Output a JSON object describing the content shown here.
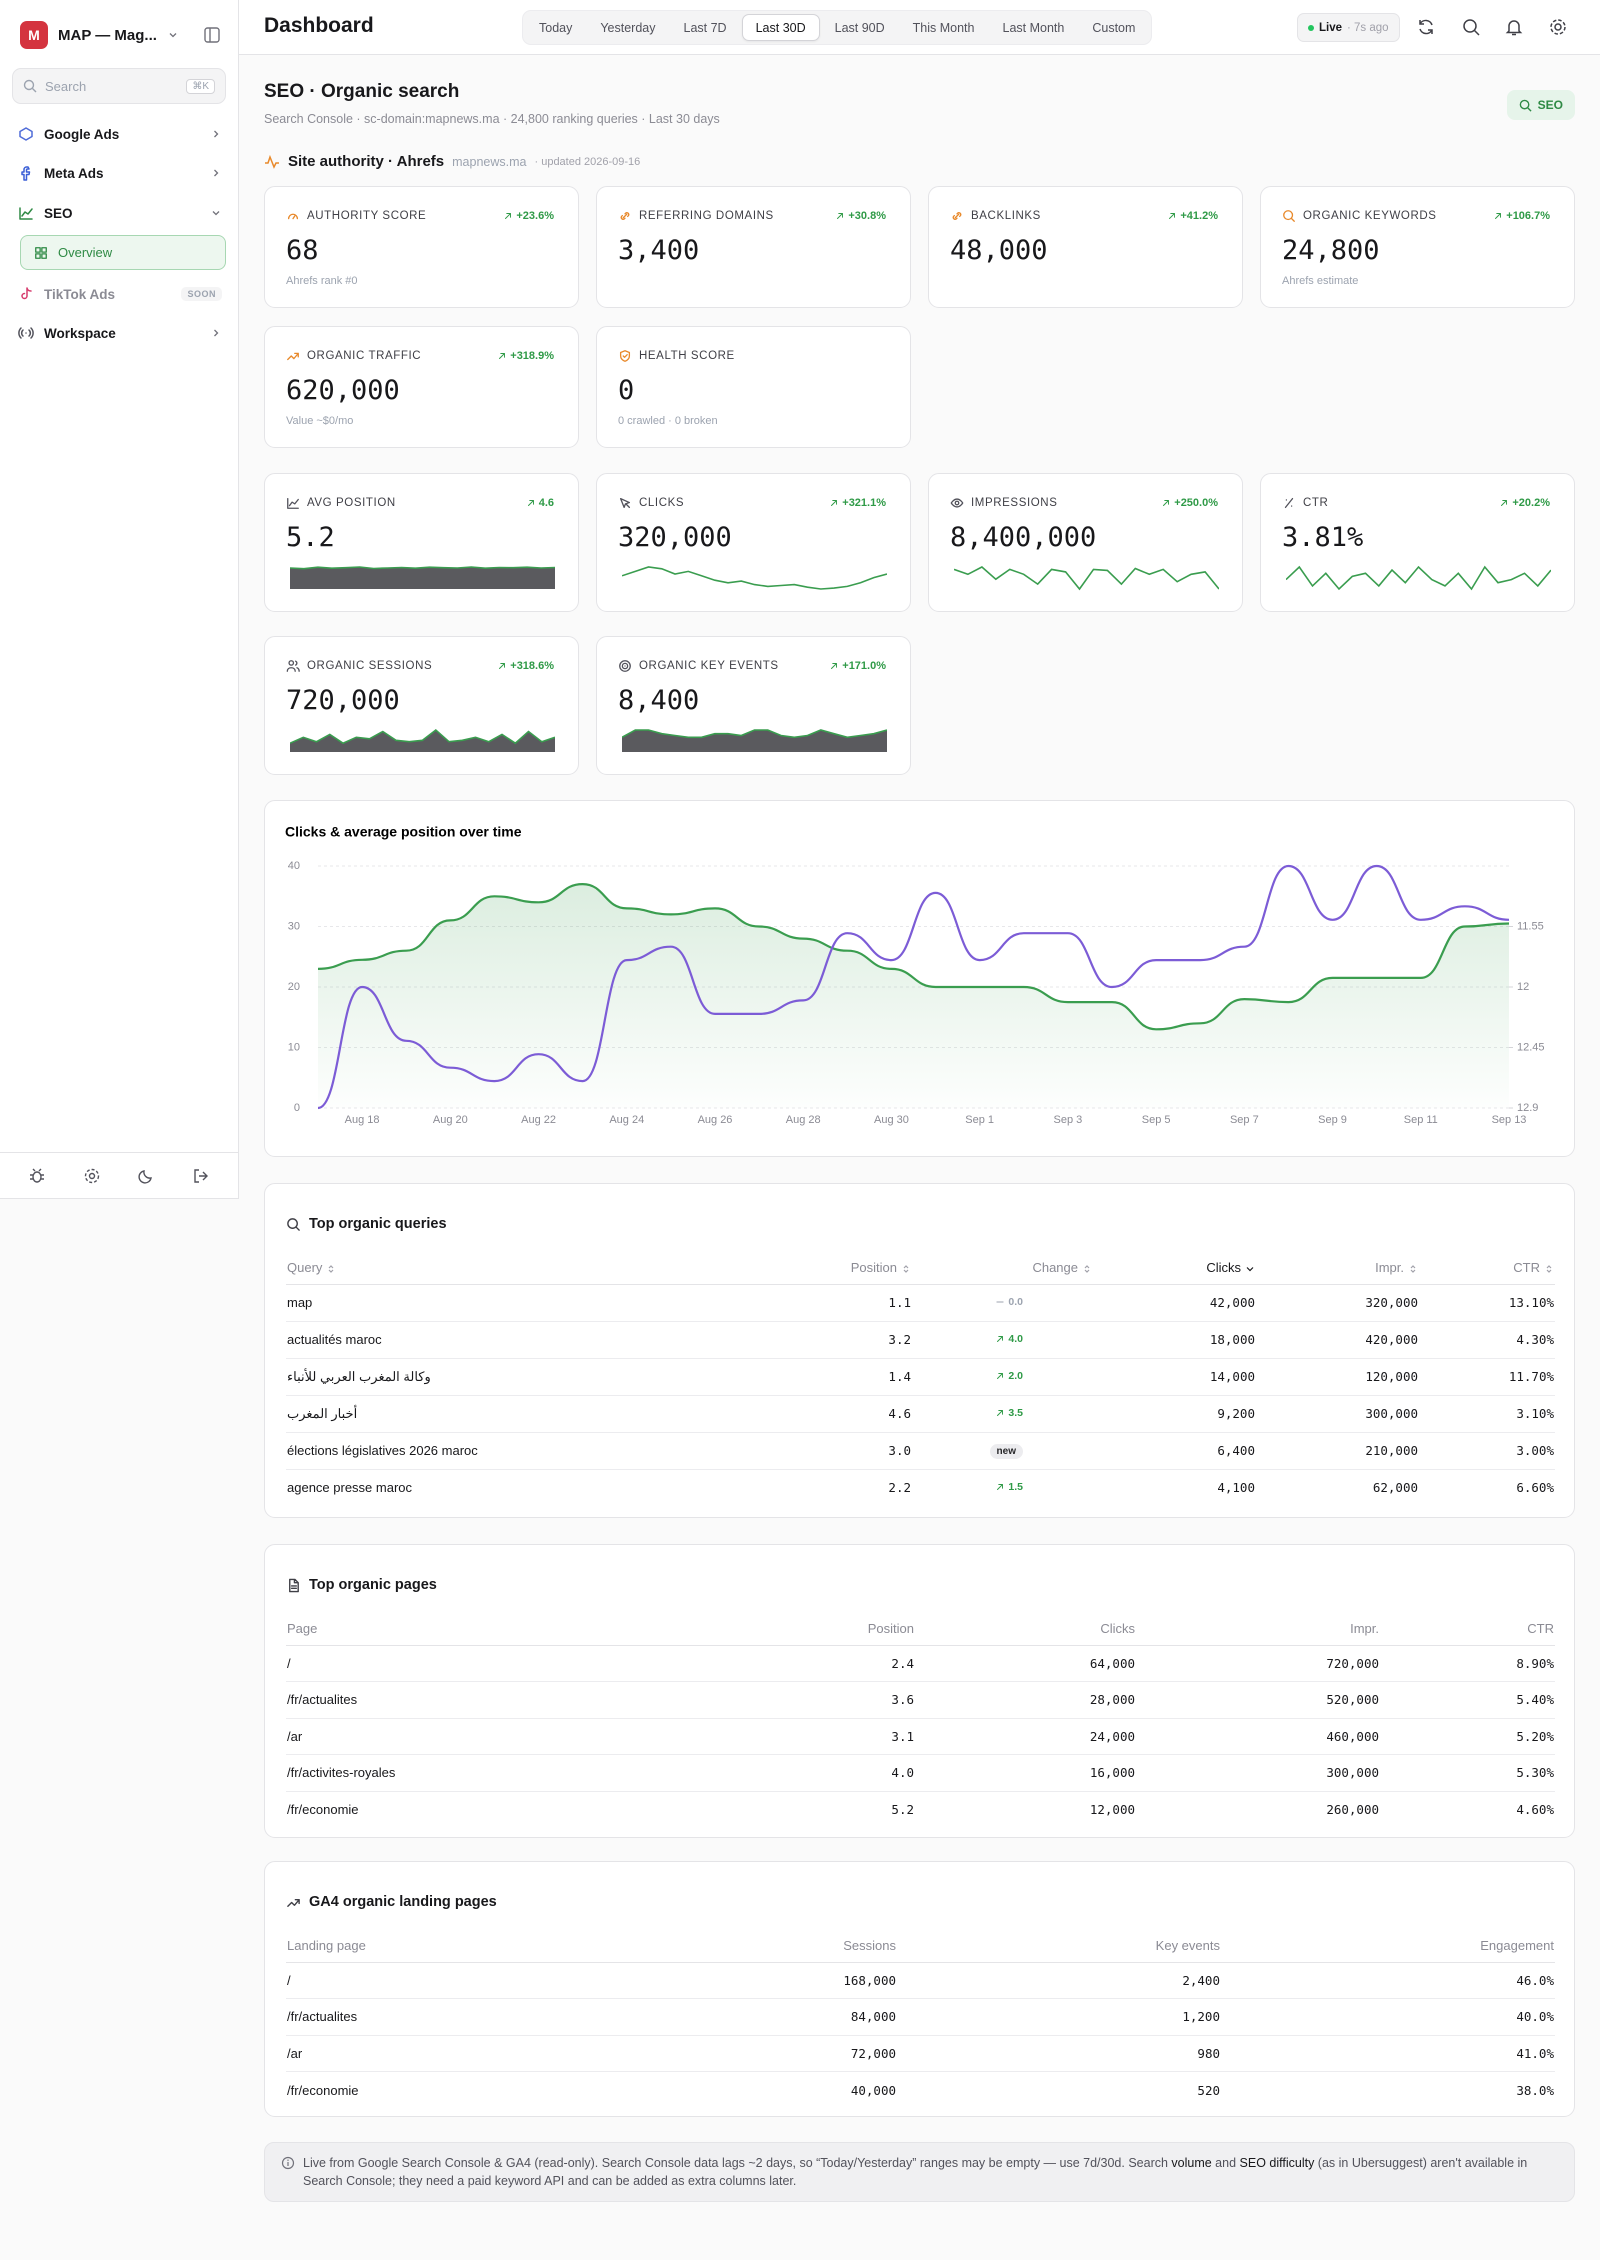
{
  "sidebar": {
    "brand_initial": "M",
    "brand": "MAP — Mag...",
    "search_placeholder": "Search",
    "search_shortcut": "⌘K",
    "nav": [
      {
        "label": "Google Ads",
        "state": "collapsed"
      },
      {
        "label": "Meta Ads",
        "state": "collapsed"
      },
      {
        "label": "SEO",
        "state": "expanded",
        "children": [
          "Overview"
        ]
      },
      {
        "label": "TikTok Ads",
        "state": "disabled",
        "badge": "SOON"
      },
      {
        "label": "Workspace",
        "state": "collapsed"
      }
    ]
  },
  "header": {
    "title": "Dashboard",
    "ranges": [
      "Today",
      "Yesterday",
      "Last 7D",
      "Last 30D",
      "Last 90D",
      "This Month",
      "Last Month",
      "Custom"
    ],
    "active_range": 3,
    "live": "Live",
    "live_age": "· 7s ago"
  },
  "section": {
    "title": "SEO · Organic search",
    "subtitle": "Search Console · sc-domain:mapnews.ma · 24,800 ranking queries · Last 30 days",
    "badge": "SEO"
  },
  "authority": {
    "title": "Site authority · Ahrefs",
    "domain": "mapnews.ma",
    "updated": "· updated 2026-09-16",
    "kpis": [
      {
        "label": "AUTHORITY SCORE",
        "value": "68",
        "change": "+23.6%",
        "note": "Ahrefs rank #0"
      },
      {
        "label": "REFERRING DOMAINS",
        "value": "3,400",
        "change": "+30.8%"
      },
      {
        "label": "BACKLINKS",
        "value": "48,000",
        "change": "+41.2%"
      },
      {
        "label": "ORGANIC KEYWORDS",
        "value": "24,800",
        "change": "+106.7%",
        "note": "Ahrefs estimate"
      },
      {
        "label": "ORGANIC TRAFFIC",
        "value": "620,000",
        "change": "+318.9%",
        "note": "Value ~$0/mo"
      },
      {
        "label": "HEALTH SCORE",
        "value": "0",
        "note": "0 crawled · 0 broken"
      }
    ]
  },
  "gsc_kpis": [
    {
      "label": "AVG POSITION",
      "value": "5.2",
      "change": "4.6",
      "sparkline": {
        "style": "area",
        "values": [
          8.5,
          8.2,
          8.8,
          8.4,
          8.6,
          8.9,
          8.3,
          8.5,
          8.7,
          8.4,
          8.8,
          8.6,
          8.5,
          8.9,
          8.4,
          8.7,
          8.6,
          8.8,
          8.5,
          8.7
        ]
      }
    },
    {
      "label": "CLICKS",
      "value": "320,000",
      "change": "+321.1%",
      "sparkline": {
        "style": "line",
        "values": [
          6,
          6.5,
          7,
          6.8,
          6.2,
          6.5,
          6,
          5.5,
          5.2,
          5.4,
          5,
          4.8,
          4.9,
          5,
          4.7,
          4.5,
          4.6,
          4.8,
          5.2,
          5.8,
          6.2
        ]
      }
    },
    {
      "label": "IMPRESSIONS",
      "value": "8,400,000",
      "change": "+250.0%",
      "sparkline": {
        "style": "line",
        "values": [
          7,
          6,
          7.5,
          5,
          7,
          6,
          4,
          7,
          6.5,
          3,
          7,
          6.8,
          4,
          7.2,
          6,
          7,
          4.5,
          6,
          6.5,
          3
        ]
      }
    },
    {
      "label": "CTR",
      "value": "3.81%",
      "change": "+20.2%",
      "sparkline": {
        "style": "line",
        "values": [
          5,
          7,
          4,
          6,
          3.5,
          5.5,
          6,
          4,
          6.5,
          4.5,
          7,
          5,
          4,
          6,
          3.5,
          7,
          4.5,
          5,
          6,
          4,
          6.5
        ]
      }
    },
    {
      "label": "ORGANIC SESSIONS",
      "value": "720,000",
      "change": "+318.6%",
      "sparkline": {
        "style": "area",
        "values": [
          3,
          5,
          3.5,
          6,
          3,
          5,
          4.5,
          7,
          4,
          3.5,
          4,
          7.5,
          3.5,
          4,
          5,
          3.5,
          6,
          3,
          7,
          3.5,
          5
        ]
      }
    },
    {
      "label": "ORGANIC KEY EVENTS",
      "value": "8,400",
      "change": "+171.0%",
      "sparkline": {
        "style": "area",
        "values": [
          4,
          6,
          6,
          5,
          4.5,
          4,
          4,
          5,
          5,
          4.5,
          6,
          6,
          4.5,
          4,
          4.5,
          6,
          5,
          4,
          4.5,
          5,
          6
        ]
      }
    }
  ],
  "chart_data": {
    "type": "line",
    "title": "Clicks & average position over time",
    "categories": [
      null,
      "Aug 18",
      null,
      "Aug 20",
      null,
      "Aug 22",
      null,
      "Aug 24",
      null,
      "Aug 26",
      null,
      "Aug 28",
      null,
      "Aug 30",
      null,
      "Sep 1",
      null,
      "Sep 3",
      null,
      "Sep 5",
      null,
      "Sep 7",
      null,
      "Sep 9",
      null,
      "Sep 11",
      null,
      "Sep 13"
    ],
    "series": [
      {
        "color": "#3a9d4f",
        "fill": true,
        "axis": "y",
        "values": [
          23,
          24.5,
          26,
          31,
          35,
          34,
          37,
          33,
          32,
          33,
          30,
          28,
          26,
          23,
          20,
          20,
          20,
          17.5,
          17.5,
          13,
          14,
          18,
          17.5,
          21.5,
          21.5,
          21.5,
          30,
          30.5
        ]
      },
      {
        "color": "#7c5cd6",
        "fill": false,
        "axis": "y2",
        "values": [
          12.9,
          12.0,
          12.4,
          12.6,
          12.7,
          12.5,
          12.7,
          11.8,
          11.7,
          12.2,
          12.2,
          12.1,
          11.6,
          11.8,
          11.3,
          11.8,
          11.6,
          11.6,
          12.0,
          11.8,
          11.8,
          11.7,
          11.1,
          11.5,
          11.1,
          11.5,
          11.4,
          11.5
        ]
      }
    ],
    "ylim": [
      0,
      40
    ],
    "yticks": [
      0,
      10,
      20,
      30,
      40
    ],
    "y2lim": [
      12.9,
      11.1
    ],
    "y2ticks": [
      11.55,
      12,
      12.45,
      12.9
    ],
    "grid": true
  },
  "queries": {
    "title": "Top organic queries",
    "columns": [
      "Query",
      "Position",
      "Change",
      "Clicks",
      "Impr.",
      "CTR"
    ],
    "sort_column": 3,
    "rows": [
      [
        "map",
        "1.1",
        {
          "dir": "flat",
          "text": "0.0"
        },
        "42,000",
        "320,000",
        "13.10%"
      ],
      [
        "actualités maroc",
        "3.2",
        {
          "dir": "up",
          "text": "4.0"
        },
        "18,000",
        "420,000",
        "4.30%"
      ],
      [
        "وكالة المغرب العربي للأنباء",
        "1.4",
        {
          "dir": "up",
          "text": "2.0"
        },
        "14,000",
        "120,000",
        "11.70%"
      ],
      [
        "أخبار المغرب",
        "4.6",
        {
          "dir": "up",
          "text": "3.5"
        },
        "9,200",
        "300,000",
        "3.10%"
      ],
      [
        "élections législatives 2026 maroc",
        "3.0",
        {
          "dir": "new",
          "text": "new"
        },
        "6,400",
        "210,000",
        "3.00%"
      ],
      [
        "agence presse maroc",
        "2.2",
        {
          "dir": "up",
          "text": "1.5"
        },
        "4,100",
        "62,000",
        "6.60%"
      ]
    ]
  },
  "pages": {
    "title": "Top organic pages",
    "columns": [
      "Page",
      "Position",
      "Clicks",
      "Impr.",
      "CTR"
    ],
    "rows": [
      [
        "/",
        "2.4",
        "64,000",
        "720,000",
        "8.90%"
      ],
      [
        "/fr/actualites",
        "3.6",
        "28,000",
        "520,000",
        "5.40%"
      ],
      [
        "/ar",
        "3.1",
        "24,000",
        "460,000",
        "5.20%"
      ],
      [
        "/fr/activites-royales",
        "4.0",
        "16,000",
        "300,000",
        "5.30%"
      ],
      [
        "/fr/economie",
        "5.2",
        "12,000",
        "260,000",
        "4.60%"
      ]
    ]
  },
  "ga4": {
    "title": "GA4 organic landing pages",
    "columns": [
      "Landing page",
      "Sessions",
      "Key events",
      "Engagement"
    ],
    "rows": [
      [
        "/",
        "168,000",
        "2,400",
        "46.0%"
      ],
      [
        "/fr/actualites",
        "84,000",
        "1,200",
        "40.0%"
      ],
      [
        "/ar",
        "72,000",
        "980",
        "41.0%"
      ],
      [
        "/fr/economie",
        "40,000",
        "520",
        "38.0%"
      ]
    ]
  },
  "footnote": [
    {
      "text": "Live from Google Search Console & GA4 (read-only). Search Console data lags ~2 days, so “Today/Yesterday” ranges may be empty — use 7d/30d. Search ",
      "bold": false
    },
    {
      "text": "volume",
      "bold": true
    },
    {
      "text": " and ",
      "bold": false
    },
    {
      "text": "SEO difficulty",
      "bold": true
    },
    {
      "text": " (as in Ubersuggest) aren't available in Search Console; they need a paid keyword API and can be added as extra columns later.",
      "bold": false
    }
  ]
}
